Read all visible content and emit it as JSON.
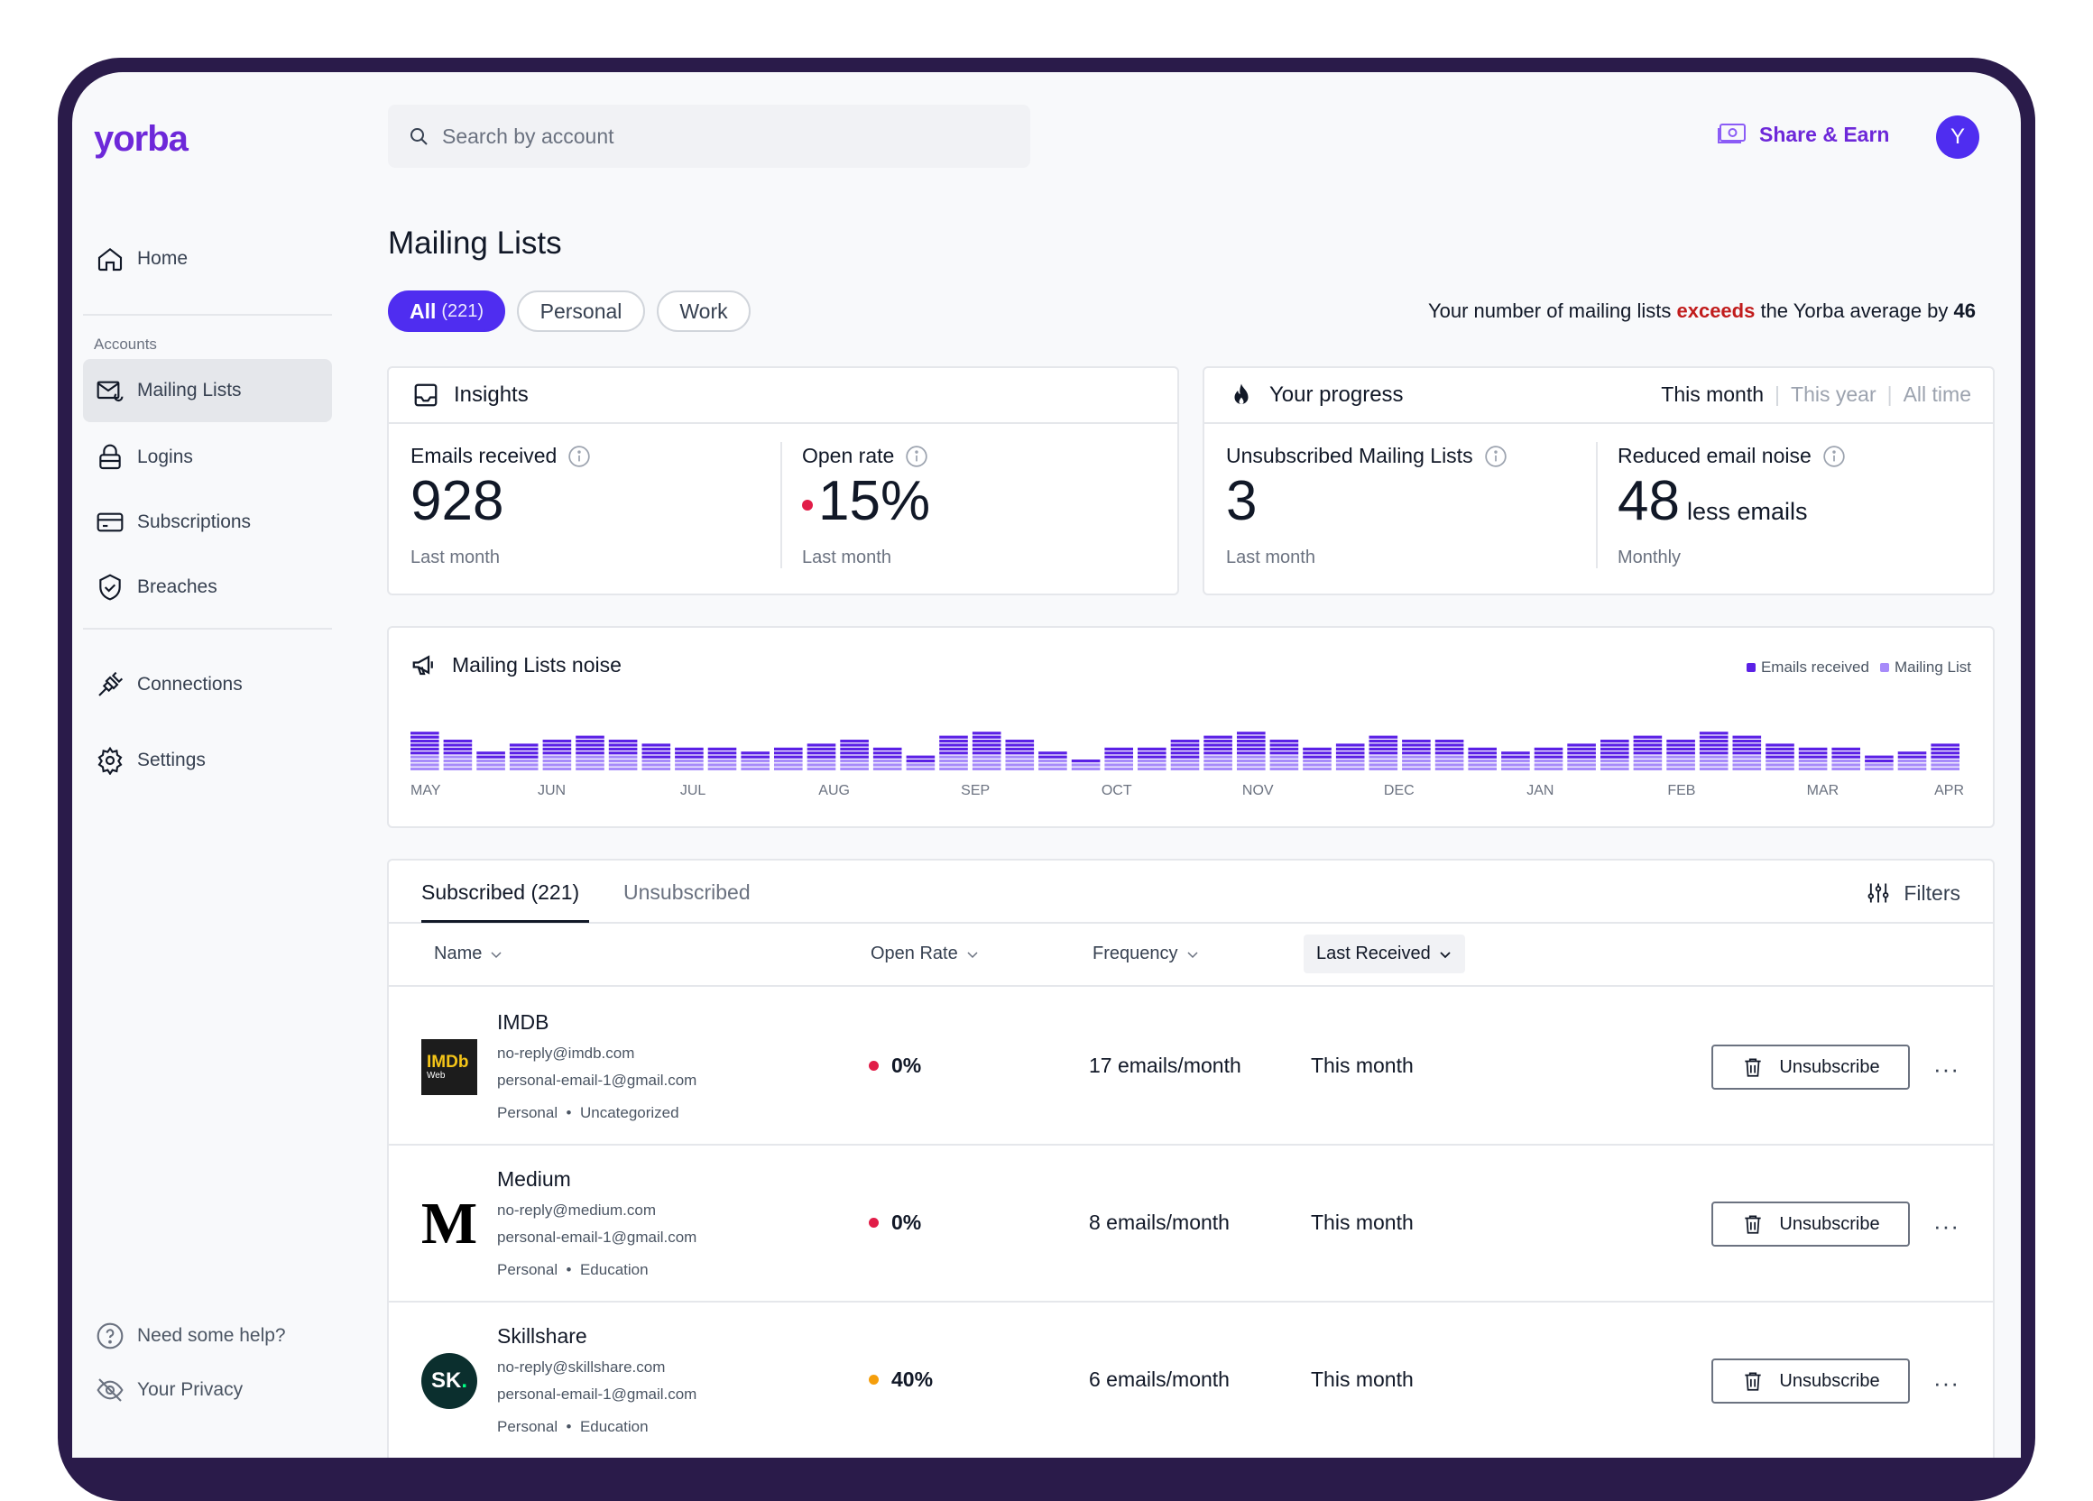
{
  "app": {
    "logo": "yorba"
  },
  "sidebar": {
    "home": "Home",
    "accounts_section": "Accounts",
    "items": [
      "Mailing Lists",
      "Logins",
      "Subscriptions",
      "Breaches"
    ],
    "connections": "Connections",
    "settings": "Settings",
    "help": "Need some help?",
    "privacy": "Your Privacy"
  },
  "topbar": {
    "search_placeholder": "Search by account",
    "share": "Share & Earn",
    "avatar_initial": "Y"
  },
  "page": {
    "title": "Mailing Lists",
    "filters": [
      {
        "label": "All",
        "count": "(221)"
      },
      {
        "label": "Personal"
      },
      {
        "label": "Work"
      }
    ],
    "exceeds_pre": "Your number of mailing lists ",
    "exceeds_word": "exceeds",
    "exceeds_mid": " the Yorba average by ",
    "exceeds_num": "46"
  },
  "insights": {
    "title": "Insights",
    "emails_label": "Emails received",
    "emails_value": "928",
    "emails_sub": "Last month",
    "open_label": "Open rate",
    "open_value": "15%",
    "open_sub": "Last month"
  },
  "progress": {
    "title": "Your progress",
    "periods": [
      "This month",
      "This year",
      "All time"
    ],
    "unsub_label": "Unsubscribed Mailing Lists",
    "unsub_value": "3",
    "unsub_sub": "Last month",
    "noise_label": "Reduced email noise",
    "noise_value": "48",
    "noise_unit": "less emails",
    "noise_sub": "Monthly"
  },
  "noise_chart": {
    "title": "Mailing Lists noise",
    "legend": [
      "Emails received",
      "Mailing List"
    ],
    "colors": {
      "emails": "#5b21e6",
      "lists": "#a78bfa"
    }
  },
  "chart_data": {
    "type": "bar",
    "title": "Mailing Lists noise",
    "xlabels": [
      "MAY",
      "JUN",
      "JUL",
      "AUG",
      "SEP",
      "OCT",
      "NOV",
      "DEC",
      "JAN",
      "FEB",
      "MAR",
      "APR"
    ],
    "series": [
      {
        "name": "Emails received",
        "values": [
          6,
          4,
          2,
          4,
          4,
          5,
          4,
          4,
          3,
          3,
          2,
          3,
          4,
          5,
          3,
          2,
          5,
          6,
          4,
          2,
          1,
          3,
          3,
          5,
          5,
          6,
          4,
          3,
          4,
          5,
          4,
          4,
          3,
          2,
          3,
          4,
          5,
          5,
          4,
          6,
          5,
          4,
          3,
          3,
          2,
          2,
          4
        ]
      },
      {
        "name": "Mailing List",
        "values": [
          4,
          4,
          3,
          3,
          4,
          4,
          4,
          3,
          3,
          3,
          3,
          3,
          3,
          3,
          3,
          2,
          4,
          4,
          4,
          3,
          2,
          3,
          3,
          3,
          4,
          4,
          4,
          3,
          3,
          4,
          4,
          4,
          3,
          3,
          3,
          3,
          3,
          4,
          4,
          4,
          4,
          3,
          3,
          3,
          2,
          3,
          3
        ]
      }
    ]
  },
  "table": {
    "tabs": [
      "Subscribed (221)",
      "Unsubscribed"
    ],
    "filters_label": "Filters",
    "columns": [
      "Name",
      "Open Rate",
      "Frequency",
      "Last Received"
    ],
    "action_label": "Unsubscribe",
    "more": "···",
    "rows": [
      {
        "name": "IMDB",
        "sender": "no-reply@imdb.com",
        "account": "personal-email-1@gmail.com",
        "tag1": "Personal",
        "tag2": "Uncategorized",
        "rate": "0%",
        "rate_color": "#e11d48",
        "freq": "17 emails/month",
        "last": "This month",
        "logo_text": "IMDb",
        "logo_sub": "Web"
      },
      {
        "name": "Medium",
        "sender": "no-reply@medium.com",
        "account": "personal-email-1@gmail.com",
        "tag1": "Personal",
        "tag2": "Education",
        "rate": "0%",
        "rate_color": "#e11d48",
        "freq": "8 emails/month",
        "last": "This month",
        "logo_text": "M"
      },
      {
        "name": "Skillshare",
        "sender": "no-reply@skillshare.com",
        "account": "personal-email-1@gmail.com",
        "tag1": "Personal",
        "tag2": "Education",
        "rate": "40%",
        "rate_color": "#f59e0b",
        "freq": "6 emails/month",
        "last": "This month",
        "logo_text": "SK"
      }
    ]
  }
}
